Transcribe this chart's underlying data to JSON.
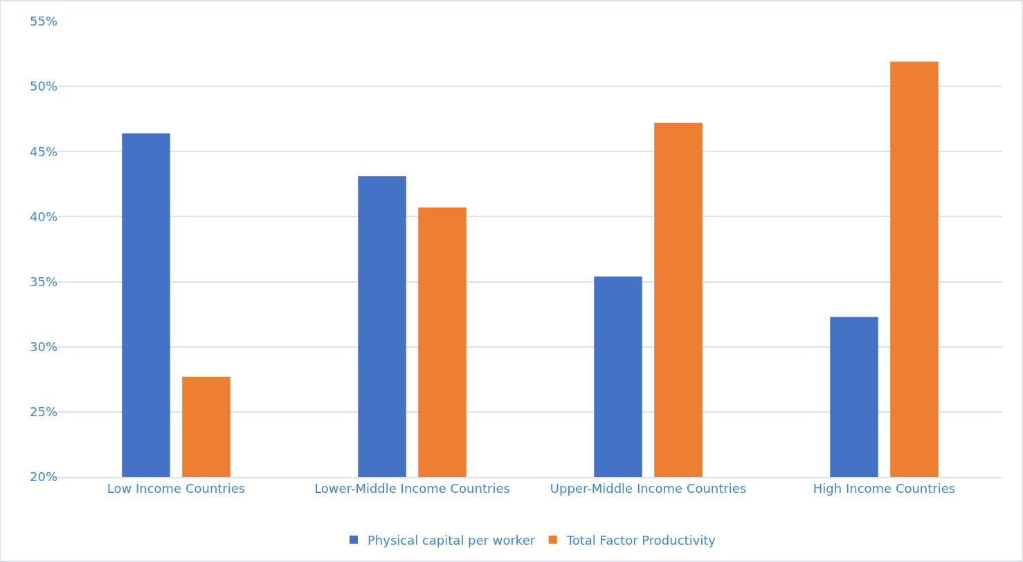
{
  "chart_data": {
    "type": "bar",
    "categories": [
      "Low Income Countries",
      "Lower-Middle Income Countries",
      "Upper-Middle Income Countries",
      "High Income Countries"
    ],
    "series": [
      {
        "name": "Physical capital per worker",
        "color": "#4472c4",
        "values": [
          46.4,
          43.1,
          35.4,
          32.3
        ]
      },
      {
        "name": "Total Factor Productivity",
        "color": "#ed7d31",
        "values": [
          27.7,
          40.7,
          47.2,
          51.9
        ]
      }
    ],
    "ylim": [
      20,
      55
    ],
    "yticks": [
      {
        "value": 20,
        "label": "20%"
      },
      {
        "value": 25,
        "label": "25%"
      },
      {
        "value": 30,
        "label": "30%"
      },
      {
        "value": 35,
        "label": "35%"
      },
      {
        "value": 40,
        "label": "40%"
      },
      {
        "value": 45,
        "label": "45%"
      },
      {
        "value": 50,
        "label": "50%"
      },
      {
        "value": 55,
        "label": "55%"
      }
    ],
    "grid": "y",
    "legend": "bottom"
  }
}
